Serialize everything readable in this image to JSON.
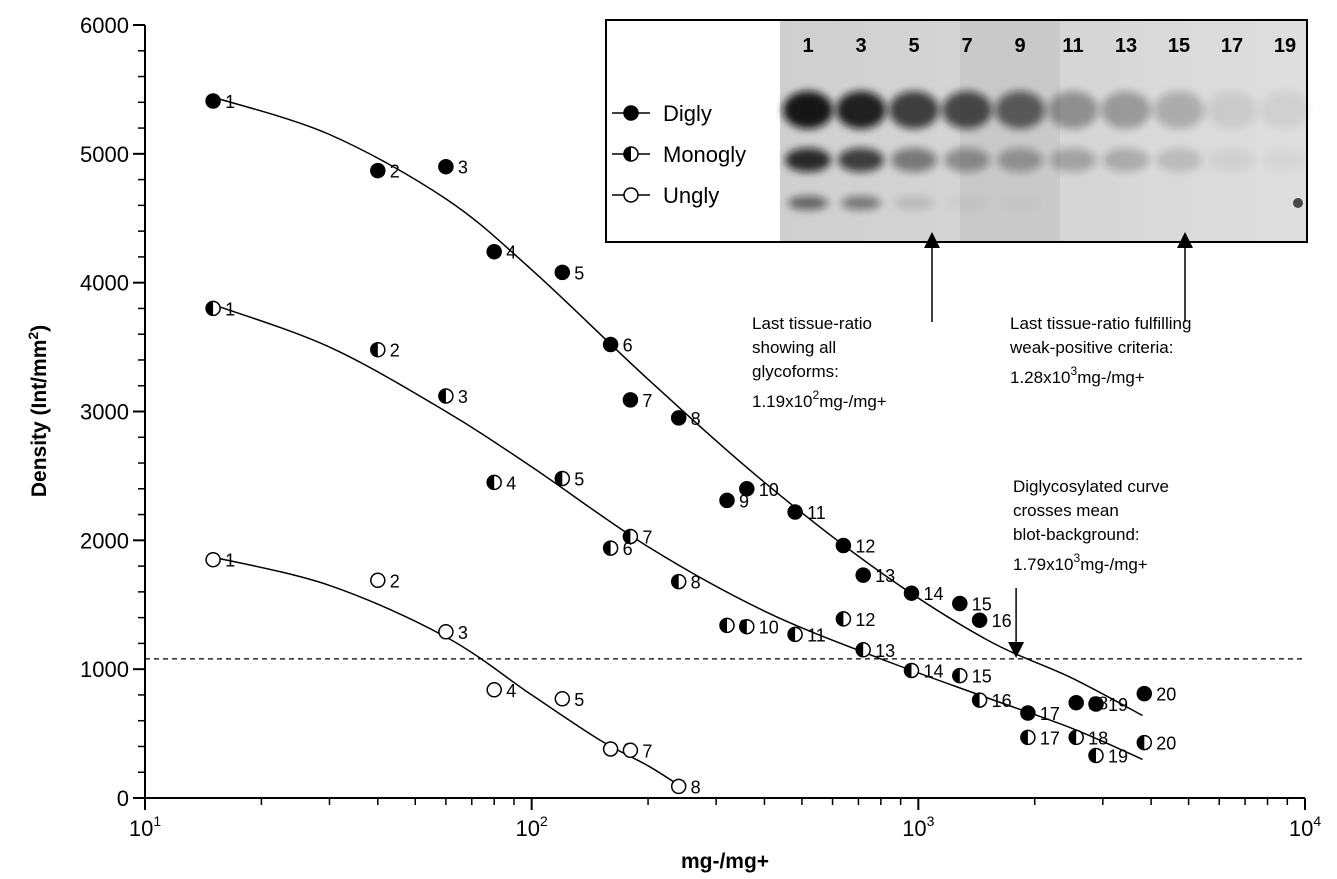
{
  "chart_data": {
    "type": "scatter",
    "xscale": "log",
    "xlim": [
      10,
      10000
    ],
    "ylim": [
      0,
      6000
    ],
    "xlabel": "mg-/mg+",
    "ylabel": "Density (Int/mm",
    "ylabel_sup": "2",
    "ylabel_end": ")",
    "xticks": [
      {
        "value": 10,
        "base": "10",
        "exp": "1"
      },
      {
        "value": 100,
        "base": "10",
        "exp": "2"
      },
      {
        "value": 1000,
        "base": "10",
        "exp": "3"
      },
      {
        "value": 10000,
        "base": "10",
        "exp": "4"
      }
    ],
    "yticks": [
      "0",
      "1000",
      "2000",
      "3000",
      "4000",
      "5000",
      "6000"
    ],
    "background_line": 1080,
    "series": [
      {
        "name": "Digly",
        "marker": "filled",
        "points": [
          {
            "label": "1",
            "x": 15,
            "y": 5410
          },
          {
            "label": "2",
            "x": 40,
            "y": 4870
          },
          {
            "label": "3",
            "x": 60,
            "y": 4900
          },
          {
            "label": "4",
            "x": 80,
            "y": 4240
          },
          {
            "label": "5",
            "x": 120,
            "y": 4080
          },
          {
            "label": "6",
            "x": 160,
            "y": 3520
          },
          {
            "label": "7",
            "x": 180,
            "y": 3090
          },
          {
            "label": "8",
            "x": 240,
            "y": 2950
          },
          {
            "label": "9",
            "x": 320,
            "y": 2310
          },
          {
            "label": "10",
            "x": 360,
            "y": 2400
          },
          {
            "label": "11",
            "x": 480,
            "y": 2220
          },
          {
            "label": "12",
            "x": 640,
            "y": 1960
          },
          {
            "label": "13",
            "x": 720,
            "y": 1730
          },
          {
            "label": "14",
            "x": 960,
            "y": 1590
          },
          {
            "label": "15",
            "x": 1280,
            "y": 1510
          },
          {
            "label": "16",
            "x": 1440,
            "y": 1380
          },
          {
            "label": "17",
            "x": 1920,
            "y": 660
          },
          {
            "label": "18",
            "x": 2560,
            "y": 740
          },
          {
            "label": "19",
            "x": 2880,
            "y": 730
          },
          {
            "label": "20",
            "x": 3840,
            "y": 810
          }
        ],
        "fit": [
          [
            15,
            5440
          ],
          [
            30,
            5150
          ],
          [
            60,
            4650
          ],
          [
            100,
            4100
          ],
          [
            200,
            3250
          ],
          [
            400,
            2450
          ],
          [
            800,
            1750
          ],
          [
            1500,
            1230
          ],
          [
            2500,
            930
          ],
          [
            3800,
            640
          ]
        ]
      },
      {
        "name": "Monogly",
        "marker": "half",
        "points": [
          {
            "label": "1",
            "x": 15,
            "y": 3800
          },
          {
            "label": "2",
            "x": 40,
            "y": 3480
          },
          {
            "label": "3",
            "x": 60,
            "y": 3120
          },
          {
            "label": "4",
            "x": 80,
            "y": 2450
          },
          {
            "label": "5",
            "x": 120,
            "y": 2480
          },
          {
            "label": "6",
            "x": 160,
            "y": 1940
          },
          {
            "label": "7",
            "x": 180,
            "y": 2030
          },
          {
            "label": "8",
            "x": 240,
            "y": 1680
          },
          {
            "label": "9",
            "x": 320,
            "y": 1340
          },
          {
            "label": "10",
            "x": 360,
            "y": 1330
          },
          {
            "label": "11",
            "x": 480,
            "y": 1270
          },
          {
            "label": "12",
            "x": 640,
            "y": 1390
          },
          {
            "label": "13",
            "x": 720,
            "y": 1150
          },
          {
            "label": "14",
            "x": 960,
            "y": 990
          },
          {
            "label": "15",
            "x": 1280,
            "y": 950
          },
          {
            "label": "16",
            "x": 1440,
            "y": 760
          },
          {
            "label": "17",
            "x": 1920,
            "y": 470
          },
          {
            "label": "18",
            "x": 2560,
            "y": 470
          },
          {
            "label": "19",
            "x": 2880,
            "y": 330
          },
          {
            "label": "20",
            "x": 3840,
            "y": 430
          }
        ],
        "fit": [
          [
            15,
            3830
          ],
          [
            30,
            3500
          ],
          [
            60,
            3000
          ],
          [
            100,
            2570
          ],
          [
            200,
            1950
          ],
          [
            400,
            1450
          ],
          [
            800,
            1080
          ],
          [
            1500,
            780
          ],
          [
            2500,
            540
          ],
          [
            3800,
            300
          ]
        ]
      },
      {
        "name": "Ungly",
        "marker": "open",
        "points": [
          {
            "label": "1",
            "x": 15,
            "y": 1850
          },
          {
            "label": "2",
            "x": 40,
            "y": 1690
          },
          {
            "label": "3",
            "x": 60,
            "y": 1290
          },
          {
            "label": "4",
            "x": 80,
            "y": 840
          },
          {
            "label": "5",
            "x": 120,
            "y": 770
          },
          {
            "label": "6",
            "x": 160,
            "y": 380
          },
          {
            "label": "7",
            "x": 180,
            "y": 370
          },
          {
            "label": "8",
            "x": 240,
            "y": 90
          }
        ],
        "fit": [
          [
            15,
            1870
          ],
          [
            30,
            1650
          ],
          [
            60,
            1250
          ],
          [
            100,
            800
          ],
          [
            150,
            450
          ],
          [
            200,
            250
          ],
          [
            240,
            100
          ]
        ]
      }
    ],
    "inset": {
      "legend": [
        "Digly",
        "Monogly",
        "Ungly"
      ],
      "lanes": [
        "1",
        "3",
        "5",
        "7",
        "9",
        "11",
        "13",
        "15",
        "17",
        "19"
      ],
      "band_intensity": {
        "digly": [
          0.95,
          0.9,
          0.75,
          0.7,
          0.6,
          0.35,
          0.3,
          0.22,
          0.08,
          0.06
        ],
        "monogly": [
          0.85,
          0.75,
          0.45,
          0.35,
          0.3,
          0.25,
          0.22,
          0.15,
          0.05,
          0.03
        ],
        "ungly": [
          0.55,
          0.45,
          0.12,
          0.04,
          0.02,
          0.0,
          0.0,
          0.0,
          0.0,
          0.0
        ]
      }
    },
    "annotations": [
      {
        "id": "all-glycoforms",
        "lines": [
          "Last tissue-ratio",
          "showing all",
          "glycoforms:"
        ],
        "value": {
          "pre": "1.19x10",
          "sup": "2",
          "post": "mg-/mg+"
        },
        "arrow_x": 1060
      },
      {
        "id": "weak-positive",
        "lines": [
          "Last tissue-ratio fulfilling",
          "weak-positive criteria:"
        ],
        "value": {
          "pre": "1.28x10",
          "sup": "3",
          "post": "mg-/mg+"
        },
        "arrow_x": 4900
      },
      {
        "id": "crosses-background",
        "lines": [
          "Diglycosylated curve",
          "crosses mean",
          "blot-background:"
        ],
        "value": {
          "pre": "1.79x10",
          "sup": "3",
          "post": "mg-/mg+"
        },
        "arrow_x": 1790
      }
    ]
  }
}
